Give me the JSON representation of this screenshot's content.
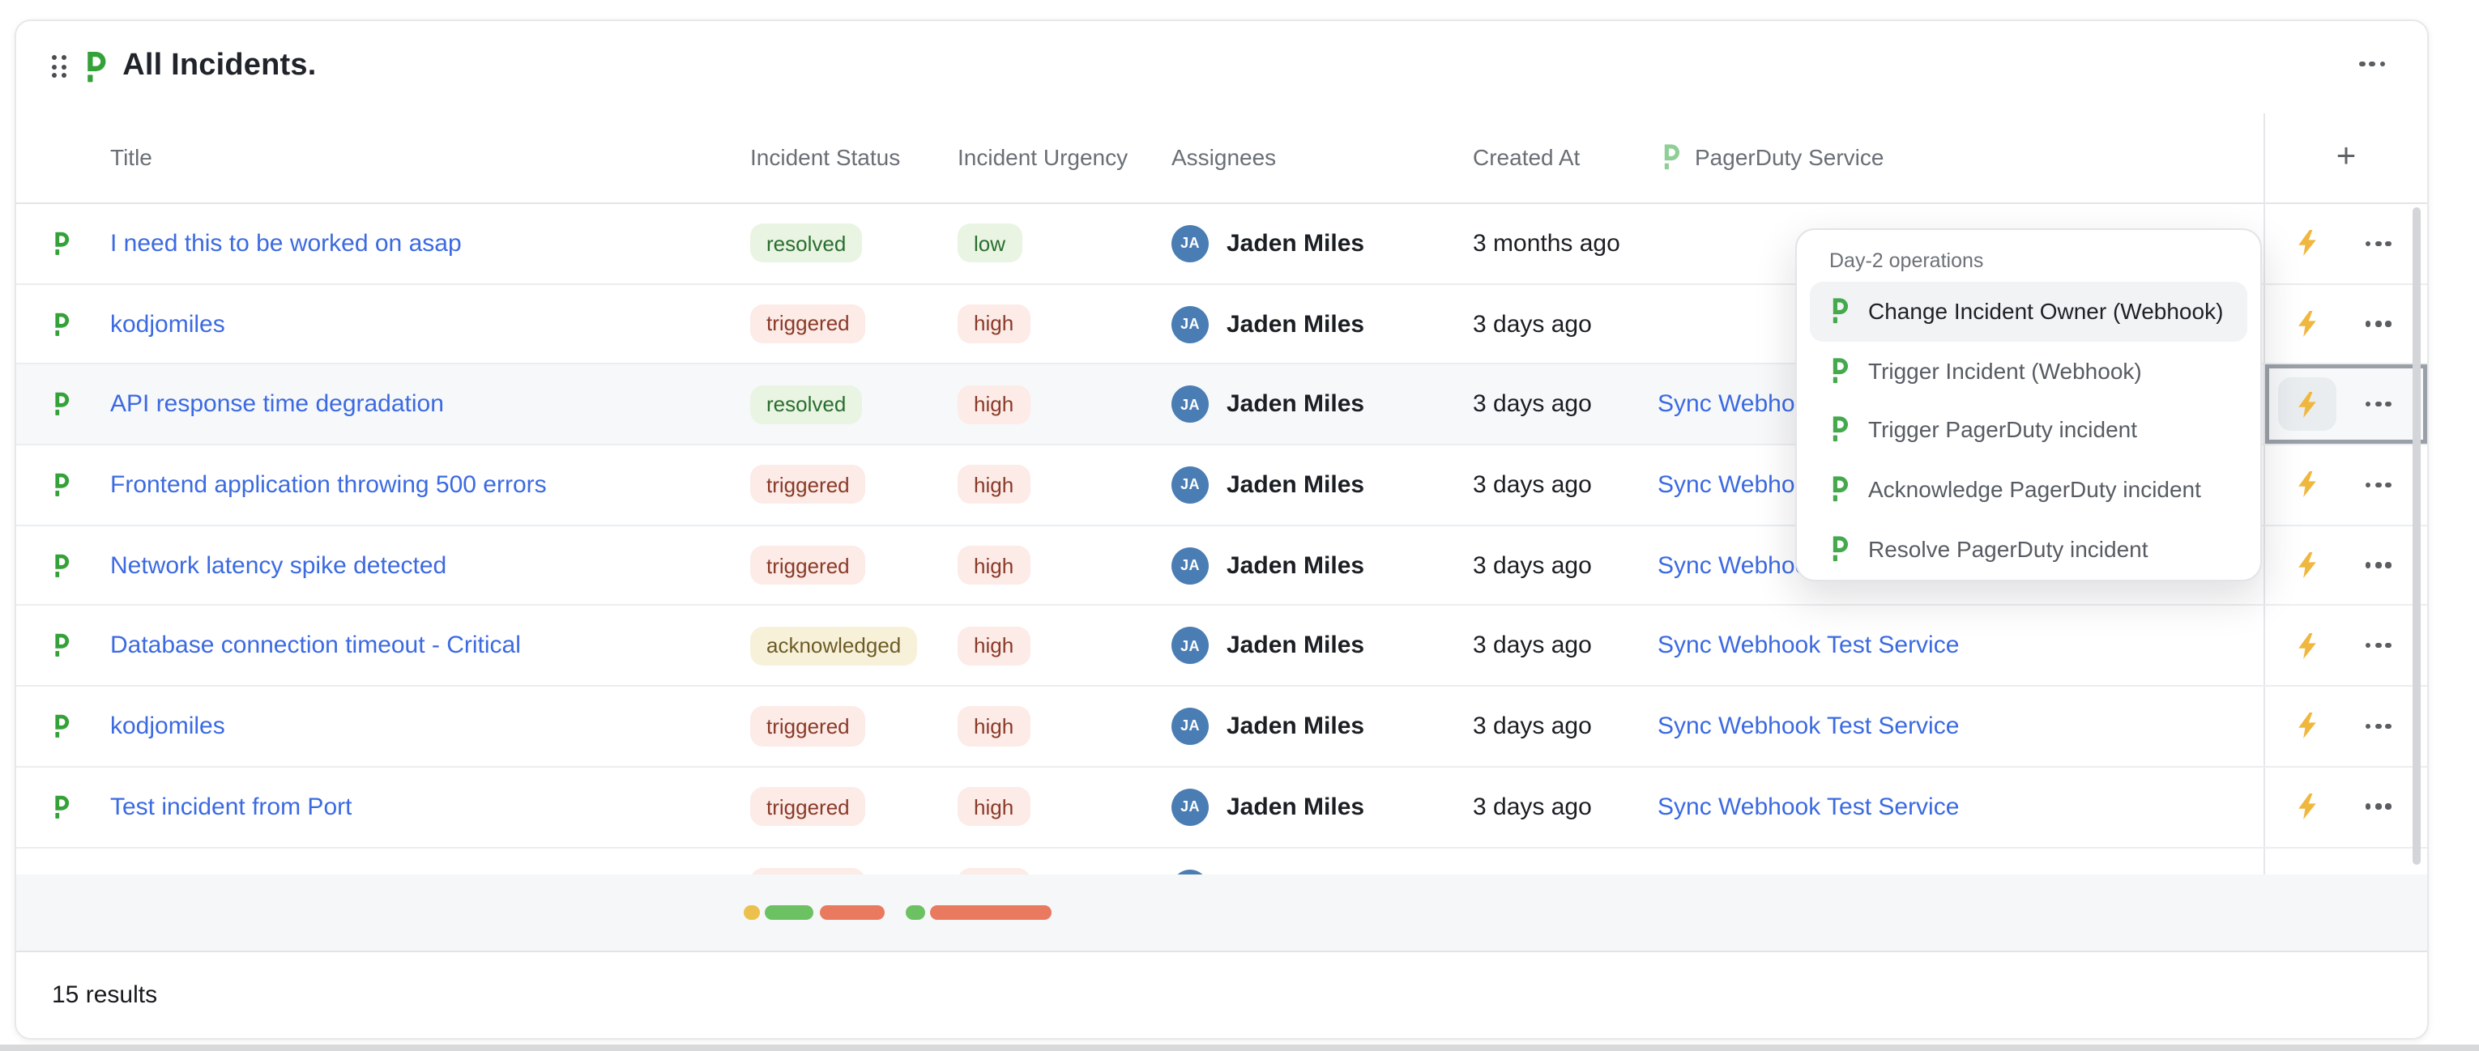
{
  "widget": {
    "title": "All Incidents.",
    "results_count": "15 results"
  },
  "table": {
    "columns": {
      "title": "Title",
      "status": "Incident Status",
      "urgency": "Incident Urgency",
      "assignees": "Assignees",
      "created_at": "Created At",
      "service": "PagerDuty Service"
    },
    "add_column_label": "+",
    "rows": [
      {
        "title": "I need this to be worked on asap",
        "status": "resolved",
        "urgency": "low",
        "assignee": "Jaden Miles",
        "assignee_initials": "JA",
        "created": "3 months ago",
        "service": ""
      },
      {
        "title": "kodjomiles",
        "status": "triggered",
        "urgency": "high",
        "assignee": "Jaden Miles",
        "assignee_initials": "JA",
        "created": "3 days ago",
        "service": ""
      },
      {
        "title": "API response time degradation",
        "status": "resolved",
        "urgency": "high",
        "assignee": "Jaden Miles",
        "assignee_initials": "JA",
        "created": "3 days ago",
        "service": "Sync Webhook Test Service",
        "selected": true
      },
      {
        "title": "Frontend application throwing 500 errors",
        "status": "triggered",
        "urgency": "high",
        "assignee": "Jaden Miles",
        "assignee_initials": "JA",
        "created": "3 days ago",
        "service": "Sync Webhook Test Service"
      },
      {
        "title": "Network latency spike detected",
        "status": "triggered",
        "urgency": "high",
        "assignee": "Jaden Miles",
        "assignee_initials": "JA",
        "created": "3 days ago",
        "service": "Sync Webhook Test Service"
      },
      {
        "title": "Database connection timeout - Critical",
        "status": "acknowledged",
        "urgency": "high",
        "assignee": "Jaden Miles",
        "assignee_initials": "JA",
        "created": "3 days ago",
        "service": "Sync Webhook Test Service"
      },
      {
        "title": "kodjomiles",
        "status": "triggered",
        "urgency": "high",
        "assignee": "Jaden Miles",
        "assignee_initials": "JA",
        "created": "3 days ago",
        "service": "Sync Webhook Test Service"
      },
      {
        "title": "Test incident from Port",
        "status": "triggered",
        "urgency": "high",
        "assignee": "Jaden Miles",
        "assignee_initials": "JA",
        "created": "3 days ago",
        "service": "Sync Webhook Test Service"
      },
      {
        "title": "",
        "status": "triggered",
        "urgency": "high",
        "assignee": "",
        "assignee_initials": "JA",
        "created": "",
        "service": "",
        "partial": true
      }
    ]
  },
  "dropdown": {
    "header": "Day-2 operations",
    "items": [
      {
        "label": "Change Incident Owner (Webhook)",
        "highlighted": true
      },
      {
        "label": "Trigger Incident (Webhook)"
      },
      {
        "label": "Trigger PagerDuty incident"
      },
      {
        "label": "Acknowledge PagerDuty incident"
      },
      {
        "label": "Resolve PagerDuty incident"
      }
    ]
  },
  "summary_bar": {
    "pills": [
      {
        "color": "#ecc04c",
        "width": 10,
        "gap": 0
      },
      {
        "color": "#6cc162",
        "width": 30,
        "gap": 3
      },
      {
        "color": "#e97a5f",
        "width": 40,
        "gap": 4
      },
      {
        "color": "#6cc162",
        "width": 12,
        "gap": 13
      },
      {
        "color": "#e97a5f",
        "width": 75,
        "gap": 3
      }
    ]
  },
  "colors": {
    "accent_link": "#3b6ae1",
    "brand_green": "#34a139",
    "brand_green_light": "#8fcf96",
    "bolt_yellow": "#f0b73f",
    "avatar_blue": "#4a7db3",
    "badges": {
      "resolved": {
        "bg": "#e9f4e3",
        "fg": "#2b6e2f"
      },
      "triggered": {
        "bg": "#fcebe7",
        "fg": "#8a3a28"
      },
      "acknowledged": {
        "bg": "#f8f1da",
        "fg": "#6d5c26"
      },
      "low": {
        "bg": "#e9f4e3",
        "fg": "#2b6e2f"
      },
      "high": {
        "bg": "#fcebe7",
        "fg": "#8a3a28"
      }
    }
  }
}
